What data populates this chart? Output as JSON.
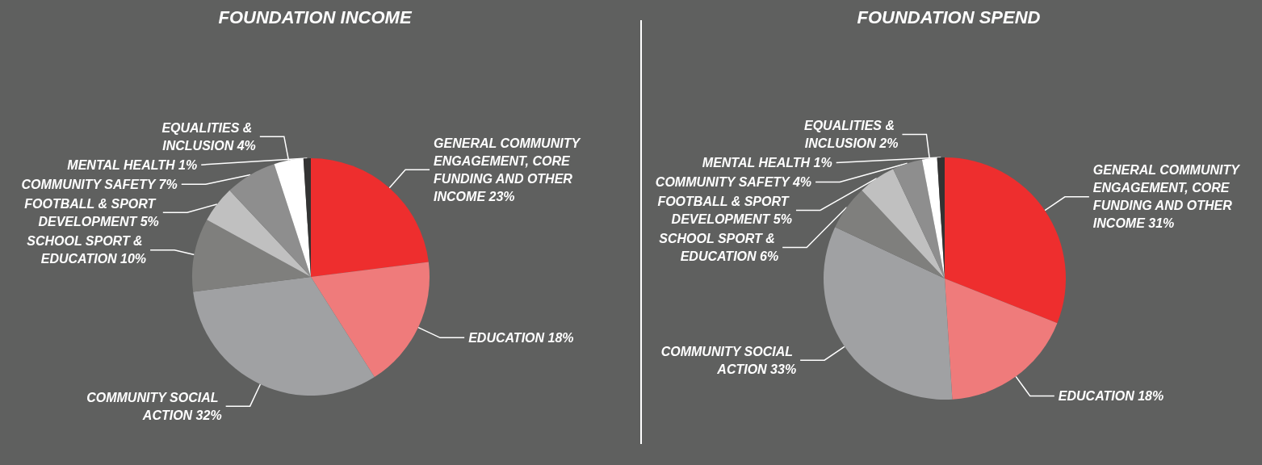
{
  "chart_data": [
    {
      "type": "pie",
      "title": "FOUNDATION INCOME",
      "categories": [
        "GENERAL COMMUNITY ENGAGEMENT, CORE FUNDING AND OTHER INCOME",
        "EDUCATION",
        "COMMUNITY SOCIAL ACTION",
        "SCHOOL SPORT & EDUCATION",
        "FOOTBALL & SPORT DEVELOPMENT",
        "COMMUNITY SAFETY",
        "EQUALITIES & INCLUSION",
        "MENTAL HEALTH"
      ],
      "values": [
        23,
        18,
        32,
        10,
        5,
        7,
        4,
        1
      ],
      "value_labels": [
        "23%",
        "18%",
        "32%",
        "10%",
        "5%",
        "7%",
        "4%",
        "1%"
      ],
      "colors": [
        "#ee2e2e",
        "#ef7b7b",
        "#a0a1a3",
        "#7f7f7d",
        "#c0c0c0",
        "#8e8e8e",
        "#ffffff",
        "#333333"
      ]
    },
    {
      "type": "pie",
      "title": "FOUNDATION SPEND",
      "categories": [
        "GENERAL COMMUNITY ENGAGEMENT, CORE FUNDING AND OTHER INCOME",
        "EDUCATION",
        "COMMUNITY SOCIAL ACTION",
        "SCHOOL SPORT & EDUCATION",
        "FOOTBALL & SPORT DEVELOPMENT",
        "COMMUNITY SAFETY",
        "EQUALITIES & INCLUSION",
        "MENTAL HEALTH"
      ],
      "values": [
        31,
        18,
        33,
        6,
        5,
        4,
        2,
        1
      ],
      "value_labels": [
        "31%",
        "18%",
        "33%",
        "6%",
        "5%",
        "4%",
        "2%",
        "1%"
      ],
      "colors": [
        "#ee2e2e",
        "#ef7b7b",
        "#a0a1a3",
        "#7f7f7d",
        "#c0c0c0",
        "#8e8e8e",
        "#ffffff",
        "#333333"
      ]
    }
  ]
}
